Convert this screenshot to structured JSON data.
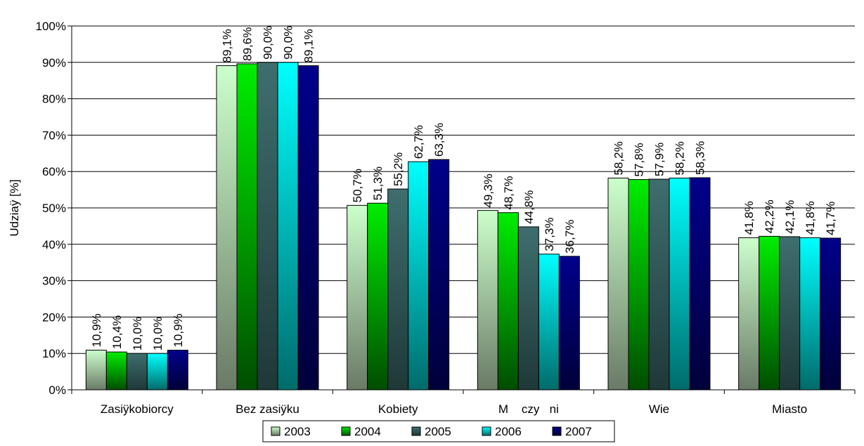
{
  "chart_data": {
    "type": "bar",
    "ylabel": "Udziaÿ [%]",
    "ylim": [
      0,
      100
    ],
    "yticks": [
      0,
      10,
      20,
      30,
      40,
      50,
      60,
      70,
      80,
      90,
      100
    ],
    "ytick_suffix": "%",
    "grid": true,
    "legend_position": "bottom",
    "categories": [
      "Zasiÿkobiorcy",
      "Bez zasiÿku",
      "Kobiety",
      "M    czy   ni",
      "Wie",
      "Miasto"
    ],
    "series": [
      {
        "name": "2003",
        "values": [
          10.9,
          89.1,
          50.7,
          49.3,
          58.2,
          41.8
        ],
        "labels": [
          "10,9%",
          "89,1%",
          "50,7%",
          "49,3%",
          "58,2%",
          "41,8%"
        ]
      },
      {
        "name": "2004",
        "values": [
          10.4,
          89.6,
          51.3,
          48.7,
          57.8,
          42.2
        ],
        "labels": [
          "10,4%",
          "89,6%",
          "51,3%",
          "48,7%",
          "57,8%",
          "42,2%"
        ]
      },
      {
        "name": "2005",
        "values": [
          10.0,
          90.0,
          55.2,
          44.8,
          57.9,
          42.1
        ],
        "labels": [
          "10,0%",
          "90,0%",
          "55,2%",
          "44,8%",
          "57,9%",
          "42,1%"
        ]
      },
      {
        "name": "2006",
        "values": [
          10.0,
          90.0,
          62.7,
          37.3,
          58.2,
          41.8
        ],
        "labels": [
          "10,0%",
          "90,0%",
          "62,7%",
          "37,3%",
          "58,2%",
          "41,8%"
        ]
      },
      {
        "name": "2007",
        "values": [
          10.9,
          89.1,
          63.3,
          36.7,
          58.3,
          41.7
        ],
        "labels": [
          "10,9%",
          "89,1%",
          "63,3%",
          "36,7%",
          "58,3%",
          "41,7%"
        ]
      }
    ],
    "colors": {
      "2003": {
        "top": "#ccffcc",
        "bottom": "#6a7a66"
      },
      "2004": {
        "top": "#00ee00",
        "bottom": "#004d00"
      },
      "2005": {
        "top": "#3f6e6e",
        "bottom": "#1f3838"
      },
      "2006": {
        "top": "#00ffff",
        "bottom": "#006b6b"
      },
      "2007": {
        "top": "#00008b",
        "bottom": "#00003a"
      }
    }
  }
}
